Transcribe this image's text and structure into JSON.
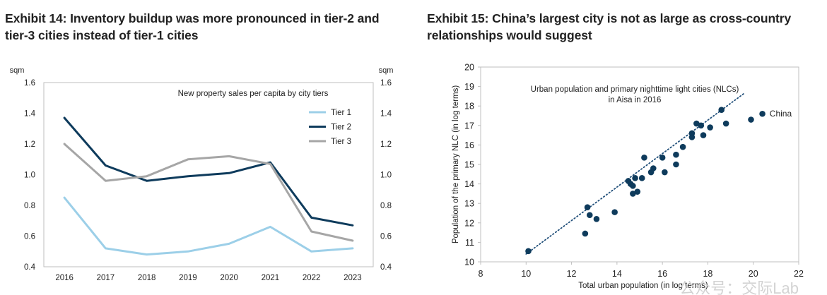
{
  "exhibit14": {
    "title": "Exhibit 14: Inventory buildup was more pronounced in tier-2 and tier-3 cities instead of tier-1 cities"
  },
  "exhibit15": {
    "title": "Exhibit 15: China’s largest city is not as large as cross-country relationships would suggest"
  },
  "watermark": "公众号：交际Lab",
  "chart_data": [
    {
      "type": "line",
      "title": "New property sales per capita by city tiers",
      "ylabel_left": "sqm",
      "ylabel_right": "sqm",
      "categories": [
        "2016",
        "2017",
        "2018",
        "2019",
        "2020",
        "2021",
        "2022",
        "2023"
      ],
      "ylim": [
        0.4,
        1.6
      ],
      "yticks": [
        "0.4",
        "0.6",
        "0.8",
        "1.0",
        "1.2",
        "1.4",
        "1.6"
      ],
      "grid": false,
      "legend_position": "top-right",
      "series": [
        {
          "name": "Tier 1",
          "color": "#9ccfe8",
          "values": [
            0.85,
            0.52,
            0.48,
            0.5,
            0.55,
            0.66,
            0.5,
            0.52
          ]
        },
        {
          "name": "Tier 2",
          "color": "#0e3b5c",
          "values": [
            1.37,
            1.06,
            0.96,
            0.99,
            1.01,
            1.08,
            0.72,
            0.67
          ]
        },
        {
          "name": "Tier 3",
          "color": "#a6a6a6",
          "values": [
            1.2,
            0.96,
            0.99,
            1.1,
            1.12,
            1.07,
            0.63,
            0.57
          ]
        }
      ]
    },
    {
      "type": "scatter",
      "title": "Urban population and primary nighttime light cities (NLCs) in Aisa in 2016",
      "xlabel": "Total urban population (in log terms)",
      "ylabel": "Population of the primary NLC (in log terms)",
      "xlim": [
        8,
        22
      ],
      "ylim": [
        10,
        20
      ],
      "xticks": [
        "8",
        "10",
        "12",
        "14",
        "16",
        "18",
        "20",
        "22"
      ],
      "yticks": [
        "10",
        "11",
        "12",
        "13",
        "14",
        "15",
        "16",
        "17",
        "18",
        "19",
        "20"
      ],
      "point_color": "#0e3b5c",
      "trendline": {
        "style": "dotted",
        "from": [
          10.0,
          10.4
        ],
        "to": [
          19.6,
          18.65
        ]
      },
      "annotations": [
        {
          "text": "China",
          "x": 20.5,
          "y": 17.6
        }
      ],
      "points": [
        [
          10.1,
          10.55
        ],
        [
          12.6,
          11.45
        ],
        [
          12.7,
          12.8
        ],
        [
          12.8,
          12.4
        ],
        [
          13.1,
          12.2
        ],
        [
          13.9,
          12.55
        ],
        [
          14.5,
          14.15
        ],
        [
          14.6,
          14.0
        ],
        [
          14.7,
          13.9
        ],
        [
          14.8,
          14.3
        ],
        [
          14.9,
          13.6
        ],
        [
          14.7,
          13.5
        ],
        [
          15.1,
          14.3
        ],
        [
          15.2,
          15.35
        ],
        [
          15.5,
          14.6
        ],
        [
          15.6,
          14.8
        ],
        [
          16.0,
          15.35
        ],
        [
          16.1,
          14.6
        ],
        [
          16.6,
          15.5
        ],
        [
          16.6,
          15.0
        ],
        [
          16.9,
          15.9
        ],
        [
          17.3,
          16.4
        ],
        [
          17.3,
          16.6
        ],
        [
          17.5,
          17.1
        ],
        [
          17.7,
          17.0
        ],
        [
          17.8,
          16.5
        ],
        [
          18.1,
          16.9
        ],
        [
          18.6,
          17.8
        ],
        [
          18.8,
          17.1
        ],
        [
          19.9,
          17.3
        ],
        [
          20.4,
          17.6
        ]
      ]
    }
  ]
}
